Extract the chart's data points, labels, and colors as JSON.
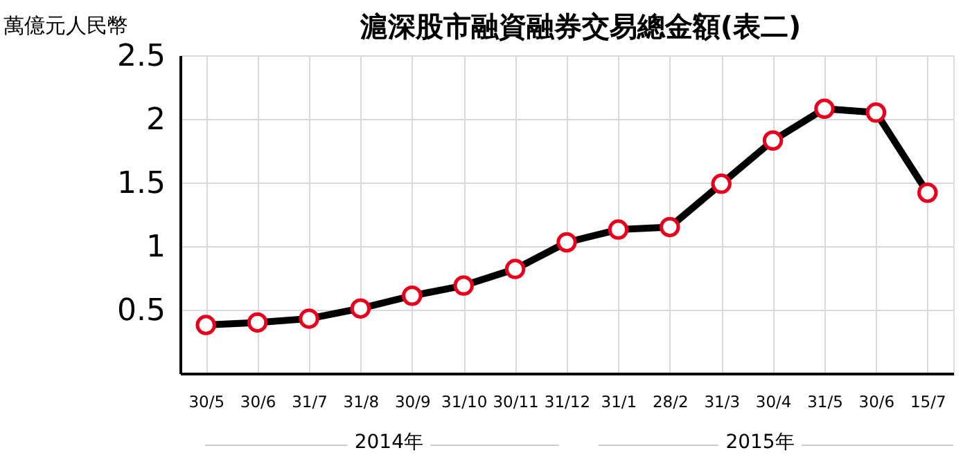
{
  "chart_data": {
    "type": "line",
    "title": "滬深股市融資融券交易總金額(表二)",
    "ylabel": "萬億元人民幣",
    "categories": [
      "30/5",
      "30/6",
      "31/7",
      "31/8",
      "30/9",
      "31/10",
      "30/11",
      "31/12",
      "31/1",
      "28/2",
      "31/3",
      "30/4",
      "31/5",
      "30/6",
      "15/7"
    ],
    "series": [
      {
        "color": "#000000",
        "values": [
          0.38,
          0.4,
          0.43,
          0.51,
          0.61,
          0.69,
          0.82,
          1.03,
          1.13,
          1.15,
          1.49,
          1.83,
          2.08,
          2.05,
          1.42
        ]
      }
    ],
    "ylim": [
      0,
      2.5
    ],
    "yticks": [
      {
        "value": 0,
        "label": null
      },
      0.5,
      1,
      1.5,
      2,
      2.5
    ],
    "grid": true,
    "marker": "circle",
    "line_style": "solid",
    "annotations": [
      "2014年",
      "2015年"
    ]
  }
}
